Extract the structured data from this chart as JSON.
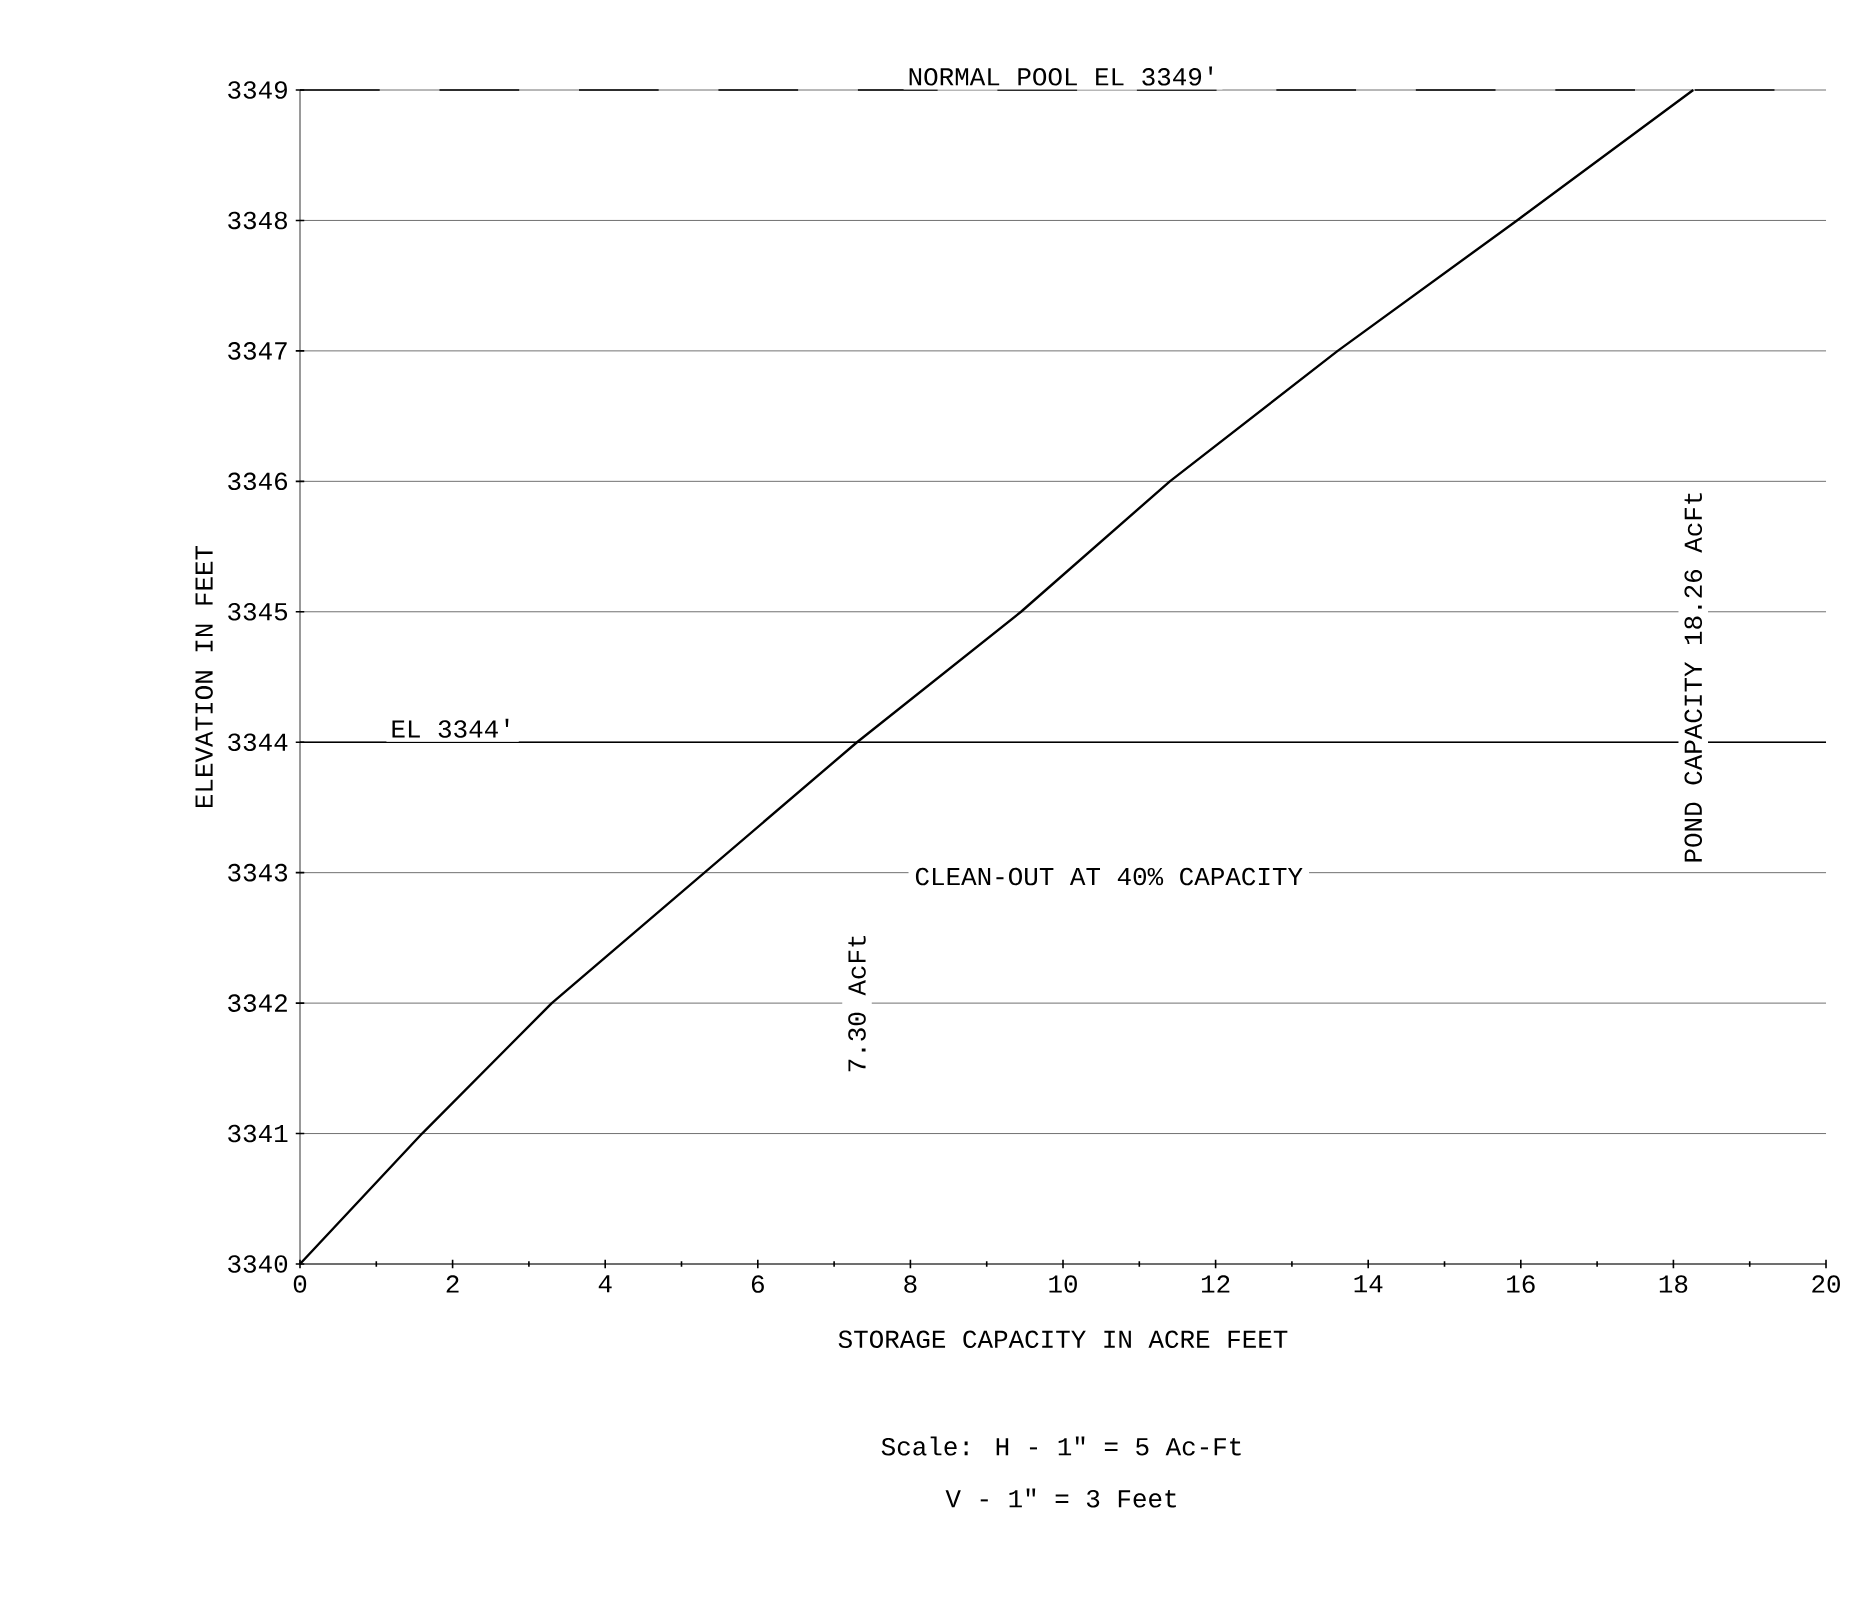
{
  "chart_data": {
    "type": "line",
    "xlabel": "STORAGE CAPACITY IN ACRE FEET",
    "ylabel": "ELEVATION IN FEET",
    "x": [
      0,
      1.6,
      3.3,
      5.3,
      7.3,
      9.45,
      11.4,
      13.6,
      15.95,
      18.26
    ],
    "series": [
      {
        "color": "#000000",
        "values": [
          3340,
          3341,
          3342,
          3343,
          3344,
          3345,
          3346,
          3347,
          3348,
          3349
        ]
      }
    ],
    "xlim": [
      0,
      20
    ],
    "xticks": [
      0,
      2,
      4,
      6,
      8,
      10,
      12,
      14,
      16,
      18,
      20
    ],
    "ylim": [
      3340,
      3349
    ],
    "yticks": [
      3340,
      3341,
      3342,
      3343,
      3344,
      3345,
      3346,
      3347,
      3348,
      3349
    ],
    "grid": "y",
    "ref_lines": [
      {
        "axis": "y",
        "value": 3349,
        "label": "NORMAL POOL   EL 3349'",
        "line_style": "dashed"
      },
      {
        "axis": "y",
        "value": 3344,
        "label": "EL 3344'",
        "line_style": "solid"
      }
    ],
    "annotations": [
      "7.30 AcFt",
      "POND CAPACITY   18.26 AcFt",
      "CLEAN-OUT AT 40% CAPACITY",
      "Scale: H - 1\" = 5 Ac-Ft",
      "V - 1\" = 3 Feet"
    ]
  }
}
